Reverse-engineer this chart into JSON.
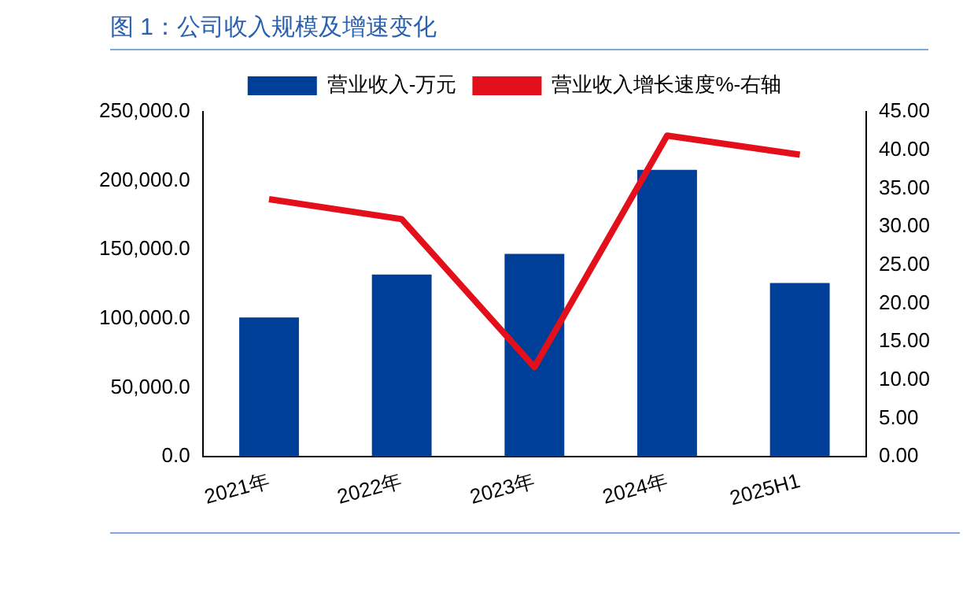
{
  "chart_data": {
    "type": "bar",
    "title": "图 1：公司收入规模及增速变化",
    "categories": [
      "2021年",
      "2022年",
      "2023年",
      "2024年",
      "2025H1"
    ],
    "series": [
      {
        "name": "营业收入-万元",
        "color": "#003f98",
        "values": [
          101000,
          132000,
          147000,
          208000,
          126000
        ]
      },
      {
        "name": "营业收入增长速度%-右轴",
        "type": "line",
        "axis": "y2",
        "color": "#e3101b",
        "values": [
          33.6,
          31.0,
          11.7,
          41.9,
          39.4
        ]
      }
    ],
    "ylim": [
      0,
      250000
    ],
    "yticks": [
      {
        "value": 0,
        "label": "0.0"
      },
      {
        "value": 50000,
        "label": "50,000.0"
      },
      {
        "value": 100000,
        "label": "100,000.0"
      },
      {
        "value": 150000,
        "label": "150,000.0"
      },
      {
        "value": 200000,
        "label": "200,000.0"
      },
      {
        "value": 250000,
        "label": "250,000.0"
      }
    ],
    "y2lim": [
      0,
      45
    ],
    "y2ticks": [
      {
        "value": 0,
        "label": "0.00"
      },
      {
        "value": 5,
        "label": "5.00"
      },
      {
        "value": 10,
        "label": "10.00"
      },
      {
        "value": 15,
        "label": "15.00"
      },
      {
        "value": 20,
        "label": "20.00"
      },
      {
        "value": 25,
        "label": "25.00"
      },
      {
        "value": 30,
        "label": "30.00"
      },
      {
        "value": 35,
        "label": "35.00"
      },
      {
        "value": 40,
        "label": "40.00"
      },
      {
        "value": 45,
        "label": "45.00"
      }
    ],
    "grid": false,
    "legend": "top",
    "marker": "none"
  }
}
